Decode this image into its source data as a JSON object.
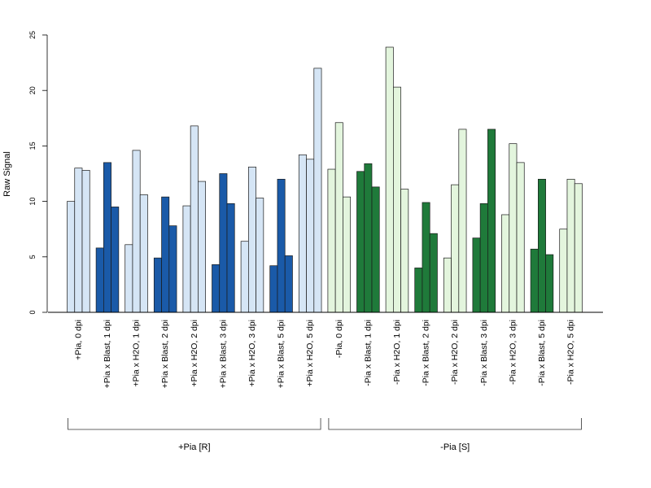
{
  "chart_data": {
    "type": "bar",
    "ylabel": "Raw Signal",
    "ylim": [
      0,
      25
    ],
    "yticks": [
      0,
      5,
      10,
      15,
      20,
      25
    ],
    "grid": false,
    "categories": [
      "+Pia, 0 dpi",
      "+Pia x Blast, 1 dpi",
      "+Pia x H2O, 1 dpi",
      "+Pia x Blast, 2 dpi",
      "+Pia x H2O, 2 dpi",
      "+Pia x Blast, 3 dpi",
      "+Pia x H2O, 3 dpi",
      "+Pia x Blast, 5 dpi",
      "+Pia x H2O, 5 dpi",
      "-Pia, 0 dpi",
      "-Pia x Blast, 1 dpi",
      "-Pia x H2O, 1 dpi",
      "-Pia x Blast, 2 dpi",
      "-Pia x H2O, 2 dpi",
      "-Pia x Blast, 3 dpi",
      "-Pia x H2O, 3 dpi",
      "-Pia x Blast, 5 dpi",
      "-Pia x H2O, 5 dpi"
    ],
    "replicates": [
      [
        10.0,
        13.0,
        12.8
      ],
      [
        5.8,
        13.5,
        9.5
      ],
      [
        6.1,
        14.6,
        10.6
      ],
      [
        4.9,
        10.4,
        7.8
      ],
      [
        9.6,
        16.8,
        11.8
      ],
      [
        4.3,
        12.5,
        9.8
      ],
      [
        6.4,
        13.1,
        10.3
      ],
      [
        4.2,
        12.0,
        5.1
      ],
      [
        14.2,
        13.8,
        22.0
      ],
      [
        12.9,
        17.1,
        10.4
      ],
      [
        12.7,
        13.4,
        11.3
      ],
      [
        23.9,
        20.3,
        11.1
      ],
      [
        4.0,
        9.9,
        7.1
      ],
      [
        4.9,
        11.5,
        16.5
      ],
      [
        6.7,
        9.8,
        16.5
      ],
      [
        8.8,
        15.2,
        13.5
      ],
      [
        5.7,
        12.0,
        5.2
      ],
      [
        7.5,
        12.0,
        11.6
      ]
    ],
    "bar_colors": [
      "#d5e5f5",
      "#1a5aa8",
      "#d5e5f5",
      "#1a5aa8",
      "#d5e5f5",
      "#1a5aa8",
      "#d5e5f5",
      "#1a5aa8",
      "#d5e5f5",
      "#e3f5dd",
      "#1f7a3a",
      "#e3f5dd",
      "#1f7a3a",
      "#e3f5dd",
      "#1f7a3a",
      "#e3f5dd",
      "#1f7a3a",
      "#e3f5dd"
    ],
    "groups": [
      {
        "label": "+Pia [R]",
        "start": 0,
        "end": 8
      },
      {
        "label": "-Pia [S]",
        "start": 9,
        "end": 17
      }
    ]
  }
}
